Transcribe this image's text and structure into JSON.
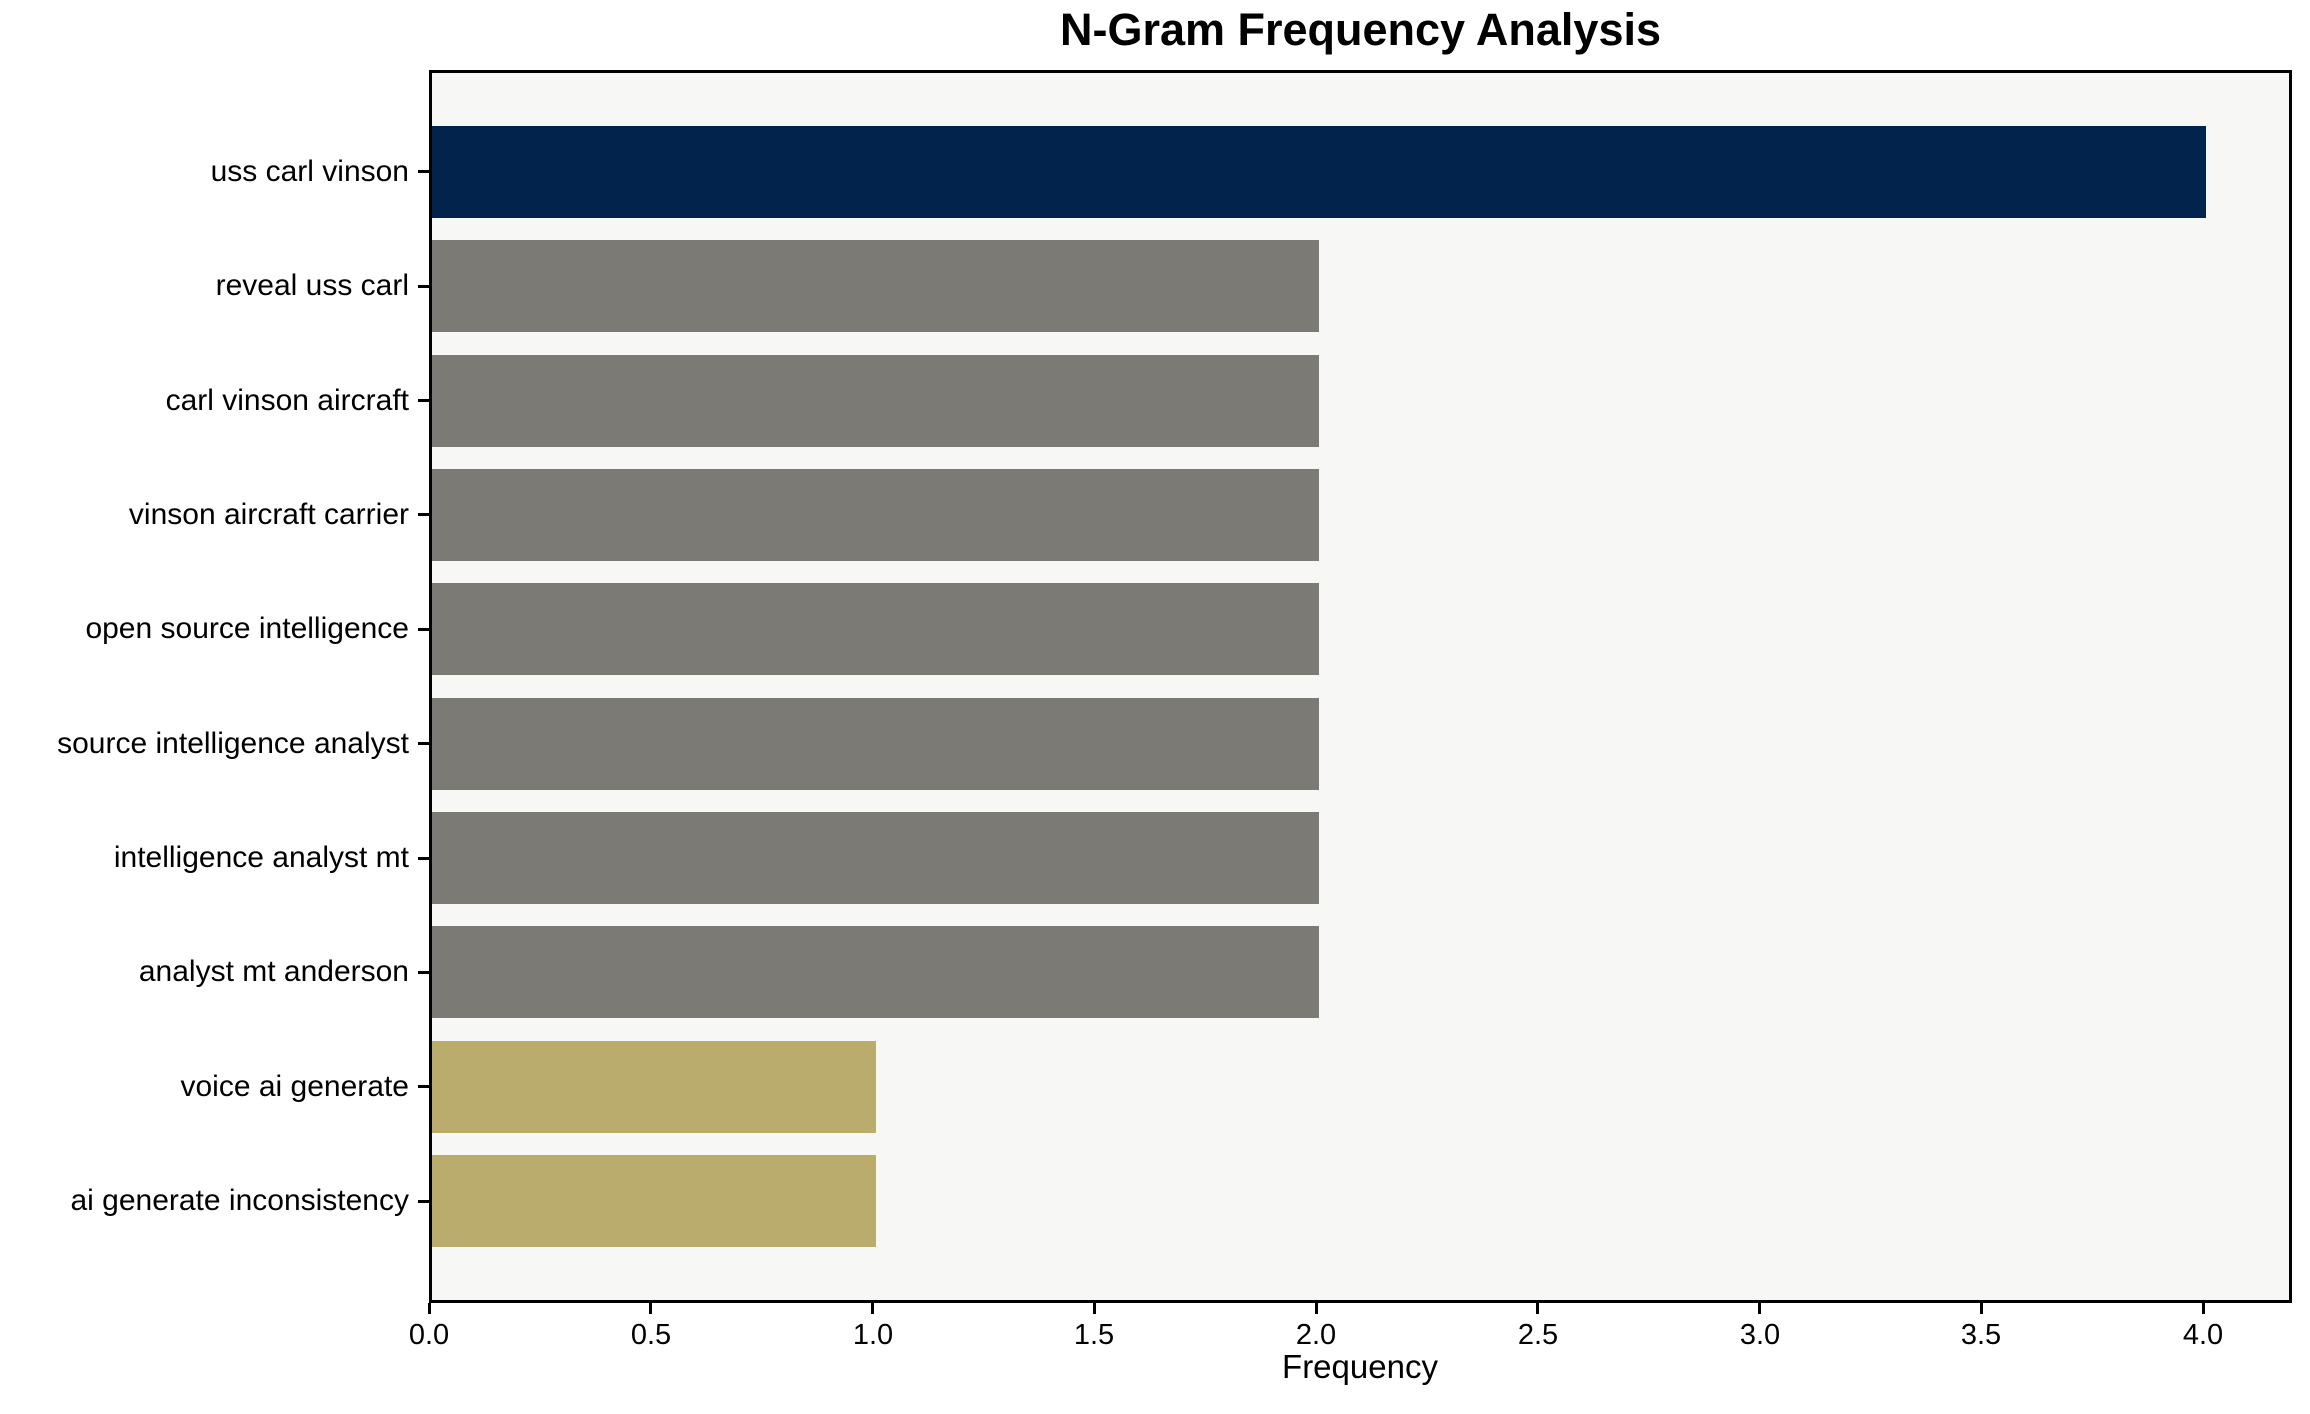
{
  "chart_data": {
    "type": "bar",
    "orientation": "horizontal",
    "title": "N-Gram Frequency Analysis",
    "xlabel": "Frequency",
    "ylabel": "",
    "categories": [
      "uss carl vinson",
      "reveal uss carl",
      "carl vinson aircraft",
      "vinson aircraft carrier",
      "open source intelligence",
      "source intelligence analyst",
      "intelligence analyst mt",
      "analyst mt anderson",
      "voice ai generate",
      "ai generate inconsistency"
    ],
    "values": [
      4,
      2,
      2,
      2,
      2,
      2,
      2,
      2,
      1,
      1
    ],
    "bar_colors": [
      "#02234c",
      "#7b7a75",
      "#7b7a75",
      "#7b7a75",
      "#7b7a75",
      "#7b7a75",
      "#7b7a75",
      "#7b7a75",
      "#b9ac6d",
      "#b9ac6d"
    ],
    "xlim": [
      0,
      4.2
    ],
    "xticks": [
      0.0,
      0.5,
      1.0,
      1.5,
      2.0,
      2.5,
      3.0,
      3.5,
      4.0
    ],
    "xtick_labels": [
      "0.0",
      "0.5",
      "1.0",
      "1.5",
      "2.0",
      "2.5",
      "3.0",
      "3.5",
      "4.0"
    ],
    "grid": false,
    "legend": "none",
    "plot_background": "#f7f7f6",
    "figure_background": "#ffffff",
    "axis_color": "#000000"
  }
}
